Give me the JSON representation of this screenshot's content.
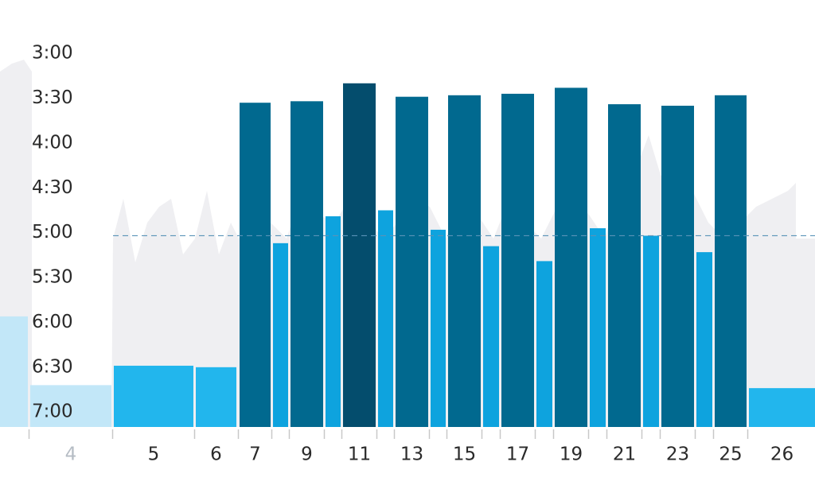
{
  "chart_data": {
    "type": "bar",
    "categories": [
      null,
      "4",
      "5",
      "6",
      "7",
      null,
      "9",
      null,
      "11",
      null,
      "13",
      null,
      "15",
      null,
      "17",
      null,
      "19",
      null,
      "21",
      null,
      "23",
      null,
      "25",
      "26"
    ],
    "values": [
      356,
      402,
      389,
      390,
      213,
      307,
      212,
      289,
      200,
      285,
      209,
      298,
      208,
      309,
      207,
      319,
      203,
      297,
      214,
      302,
      215,
      313,
      208,
      404
    ],
    "colors": [
      "#c2e7f8",
      "#c2e7f8",
      "#22b6ed",
      "#22b6ed",
      "#01698f",
      "#0ea3de",
      "#01698f",
      "#0ea3de",
      "#044d6d",
      "#0ea3de",
      "#01698f",
      "#0ea3de",
      "#01698f",
      "#0ea3de",
      "#01698f",
      "#0ea3de",
      "#01698f",
      "#0ea3de",
      "#01698f",
      "#0ea3de",
      "#01698f",
      "#0ea3de",
      "#01698f",
      "#22b6ed"
    ],
    "reference_line": 302,
    "ylim": [
      430,
      165
    ],
    "yticks": [
      {
        "value": 180,
        "label": "3:00"
      },
      {
        "value": 210,
        "label": "3:30"
      },
      {
        "value": 240,
        "label": "4:00"
      },
      {
        "value": 270,
        "label": "4:30"
      },
      {
        "value": 300,
        "label": "5:00"
      },
      {
        "value": 330,
        "label": "5:30"
      },
      {
        "value": 360,
        "label": "6:00"
      },
      {
        "value": 390,
        "label": "6:30"
      },
      {
        "value": 420,
        "label": "7:00"
      }
    ]
  }
}
